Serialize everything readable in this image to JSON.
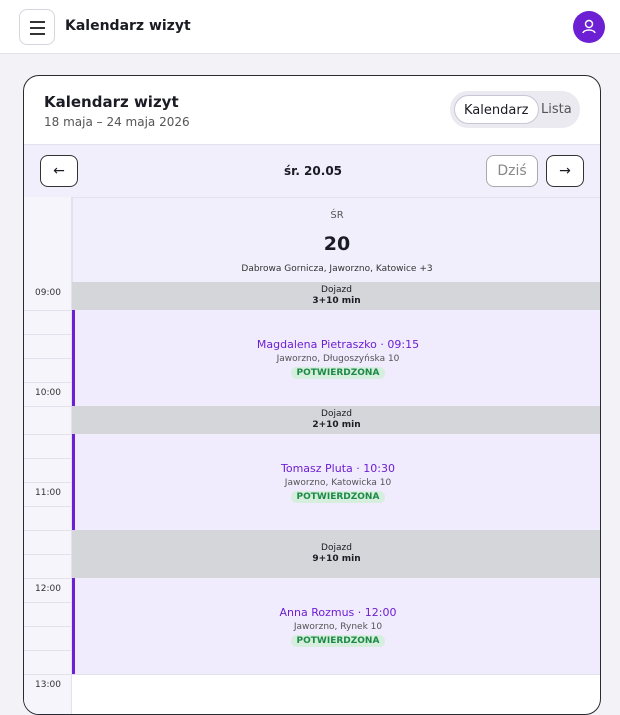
{
  "header": {
    "title": "Kalendarz wizyt"
  },
  "calendar": {
    "title": "Kalendarz wizyt",
    "date_range": "18 maja – 24 maja 2026",
    "views": [
      "Kalendarz",
      "Lista"
    ],
    "nav": {
      "prev": "←",
      "day_label": "śr. 20.05",
      "today": "Dziś",
      "next": "→"
    },
    "day": {
      "weekday": "ŚR",
      "number": "20",
      "locations": "Dabrowa Gornicza, Jaworzno, Katowice +3"
    },
    "hours": [
      "09:00",
      "10:00",
      "11:00",
      "12:00",
      "13:00"
    ],
    "blocks": [
      {
        "label": "Dojazd",
        "duration": "3+10 min"
      },
      {
        "name": "Magdalena Pietraszko · 09:15",
        "address": "Jaworzno, Długoszyńska 10",
        "status": "POTWIERDZONA"
      },
      {
        "label": "Dojazd",
        "duration": "2+10 min"
      },
      {
        "name": "Tomasz Pluta · 10:30",
        "address": "Jaworzno, Katowicka 10",
        "status": "POTWIERDZONA"
      },
      {
        "label": "Dojazd",
        "duration": "9+10 min"
      },
      {
        "name": "Anna Rozmus · 12:00",
        "address": "Jaworzno, Rynek 10",
        "status": "POTWIERDZONA"
      }
    ]
  }
}
